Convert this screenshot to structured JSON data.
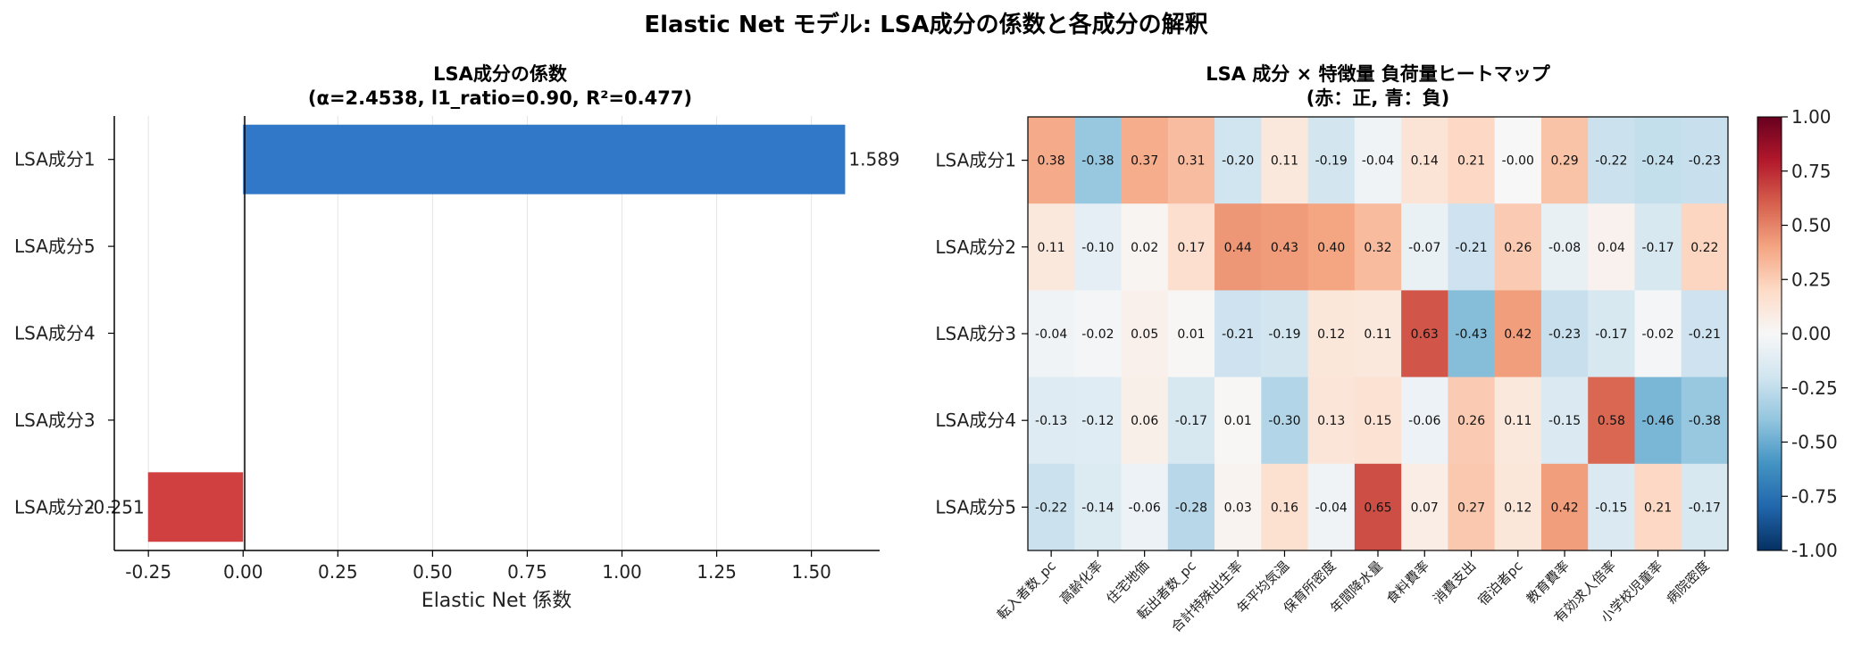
{
  "title": "Elastic Net モデル: LSA成分の係数と各成分の解釈",
  "chart_data": [
    {
      "type": "bar",
      "orientation": "horizontal",
      "title": "LSA成分の係数",
      "subtitle": "(α=2.4538, l1_ratio=0.90, R²=0.477)",
      "xlabel": "Elastic Net 係数",
      "ylabel": "",
      "categories": [
        "LSA成分1",
        "LSA成分5",
        "LSA成分4",
        "LSA成分3",
        "LSA成分2"
      ],
      "values": [
        1.589,
        0,
        0,
        0,
        -0.251
      ],
      "value_labels": [
        "1.589",
        "",
        "",
        "",
        "-0.251"
      ],
      "xlim": [
        -0.34,
        1.68
      ],
      "xticks": [
        -0.25,
        0.0,
        0.25,
        0.5,
        0.75,
        1.0,
        1.25,
        1.5
      ],
      "xtick_labels": [
        "-0.25",
        "0.00",
        "0.25",
        "0.50",
        "0.75",
        "1.00",
        "1.25",
        "1.50"
      ],
      "grid": "x",
      "colors": {
        "positive": "#3278c8",
        "negative": "#d04040"
      }
    },
    {
      "type": "heatmap",
      "title": "LSA 成分 × 特徴量 負荷量ヒートマップ",
      "subtitle": "(赤：正, 青：負)",
      "rows": [
        "LSA成分1",
        "LSA成分2",
        "LSA成分3",
        "LSA成分4",
        "LSA成分5"
      ],
      "columns": [
        "転入者数_pc",
        "高齢化率",
        "住宅地価",
        "転出者数_pc",
        "合計特殊出生率",
        "年平均気温",
        "保育所密度",
        "年間降水量",
        "食料費率",
        "消費支出",
        "宿泊者pc",
        "教育費率",
        "有効求人倍率",
        "小学校児童率",
        "病院密度"
      ],
      "values": [
        [
          0.38,
          -0.38,
          0.37,
          0.31,
          -0.2,
          0.11,
          -0.19,
          -0.04,
          0.14,
          0.21,
          -0.0,
          0.29,
          -0.22,
          -0.24,
          -0.23
        ],
        [
          0.11,
          -0.1,
          0.02,
          0.17,
          0.44,
          0.43,
          0.4,
          0.32,
          -0.07,
          -0.21,
          0.26,
          -0.08,
          0.04,
          -0.17,
          0.22
        ],
        [
          -0.04,
          -0.02,
          0.05,
          0.01,
          -0.21,
          -0.19,
          0.12,
          0.11,
          0.63,
          -0.43,
          0.42,
          -0.23,
          -0.17,
          -0.02,
          -0.21
        ],
        [
          -0.13,
          -0.12,
          0.06,
          -0.17,
          0.01,
          -0.3,
          0.13,
          0.15,
          -0.06,
          0.26,
          0.11,
          -0.15,
          0.58,
          -0.46,
          -0.38
        ],
        [
          -0.22,
          -0.14,
          -0.06,
          -0.28,
          0.03,
          0.16,
          -0.04,
          0.65,
          0.07,
          0.27,
          0.12,
          0.42,
          -0.15,
          0.21,
          -0.17
        ]
      ],
      "labels": [
        [
          "0.38",
          "-0.38",
          "0.37",
          "0.31",
          "-0.20",
          "0.11",
          "-0.19",
          "-0.04",
          "0.14",
          "0.21",
          "-0.00",
          "0.29",
          "-0.22",
          "-0.24",
          "-0.23"
        ],
        [
          "0.11",
          "-0.10",
          "0.02",
          "0.17",
          "0.44",
          "0.43",
          "0.40",
          "0.32",
          "-0.07",
          "-0.21",
          "0.26",
          "-0.08",
          "0.04",
          "-0.17",
          "0.22"
        ],
        [
          "-0.04",
          "-0.02",
          "0.05",
          "0.01",
          "-0.21",
          "-0.19",
          "0.12",
          "0.11",
          "0.63",
          "-0.43",
          "0.42",
          "-0.23",
          "-0.17",
          "-0.02",
          "-0.21"
        ],
        [
          "-0.13",
          "-0.12",
          "0.06",
          "-0.17",
          "0.01",
          "-0.30",
          "0.13",
          "0.15",
          "-0.06",
          "0.26",
          "0.11",
          "-0.15",
          "0.58",
          "-0.46",
          "-0.38"
        ],
        [
          "-0.22",
          "-0.14",
          "-0.06",
          "-0.28",
          "0.03",
          "0.16",
          "-0.04",
          "0.65",
          "0.07",
          "0.27",
          "0.12",
          "0.42",
          "-0.15",
          "0.21",
          "-0.17"
        ]
      ],
      "colormap": "RdBu_r",
      "vmin": -1.0,
      "vmax": 1.0,
      "colorbar_ticks": [
        1.0,
        0.75,
        0.5,
        0.25,
        0.0,
        -0.25,
        -0.5,
        -0.75,
        -1.0
      ],
      "colorbar_tick_labels": [
        "1.00",
        "0.75",
        "0.50",
        "0.25",
        "0.00",
        "-0.25",
        "-0.50",
        "-0.75",
        "-1.00"
      ]
    }
  ]
}
